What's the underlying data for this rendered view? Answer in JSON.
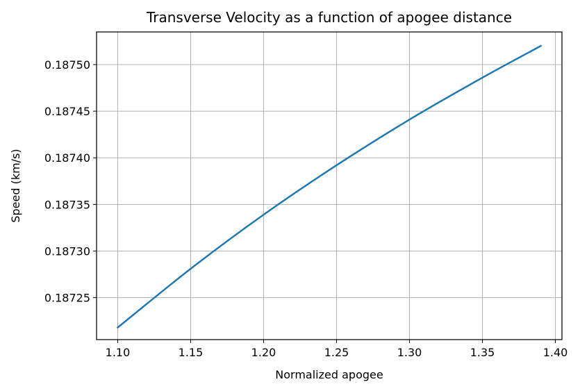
{
  "chart_data": {
    "type": "line",
    "title": "Transverse Velocity as a function of apogee distance",
    "xlabel": "Normalized apogee",
    "ylabel": "Speed (km/s)",
    "xlim": [
      1.0855,
      1.4045
    ],
    "ylim": [
      0.187205,
      0.187535
    ],
    "xticks": [
      1.1,
      1.15,
      1.2,
      1.25,
      1.3,
      1.35,
      1.4
    ],
    "xtick_labels": [
      "1.10",
      "1.15",
      "1.20",
      "1.25",
      "1.30",
      "1.35",
      "1.40"
    ],
    "yticks": [
      0.18725,
      0.1873,
      0.18735,
      0.1874,
      0.18745,
      0.1875
    ],
    "ytick_labels": [
      "0.18725",
      "0.18730",
      "0.18735",
      "0.18740",
      "0.18745",
      "0.18750"
    ],
    "grid": true,
    "legend": false,
    "series": [
      {
        "color": "#1f77b4",
        "x": [
          1.1,
          1.15,
          1.2,
          1.25,
          1.3,
          1.35,
          1.39
        ],
        "y": [
          0.187218,
          0.187281,
          0.187339,
          0.187392,
          0.187441,
          0.187486,
          0.18752
        ]
      }
    ]
  }
}
